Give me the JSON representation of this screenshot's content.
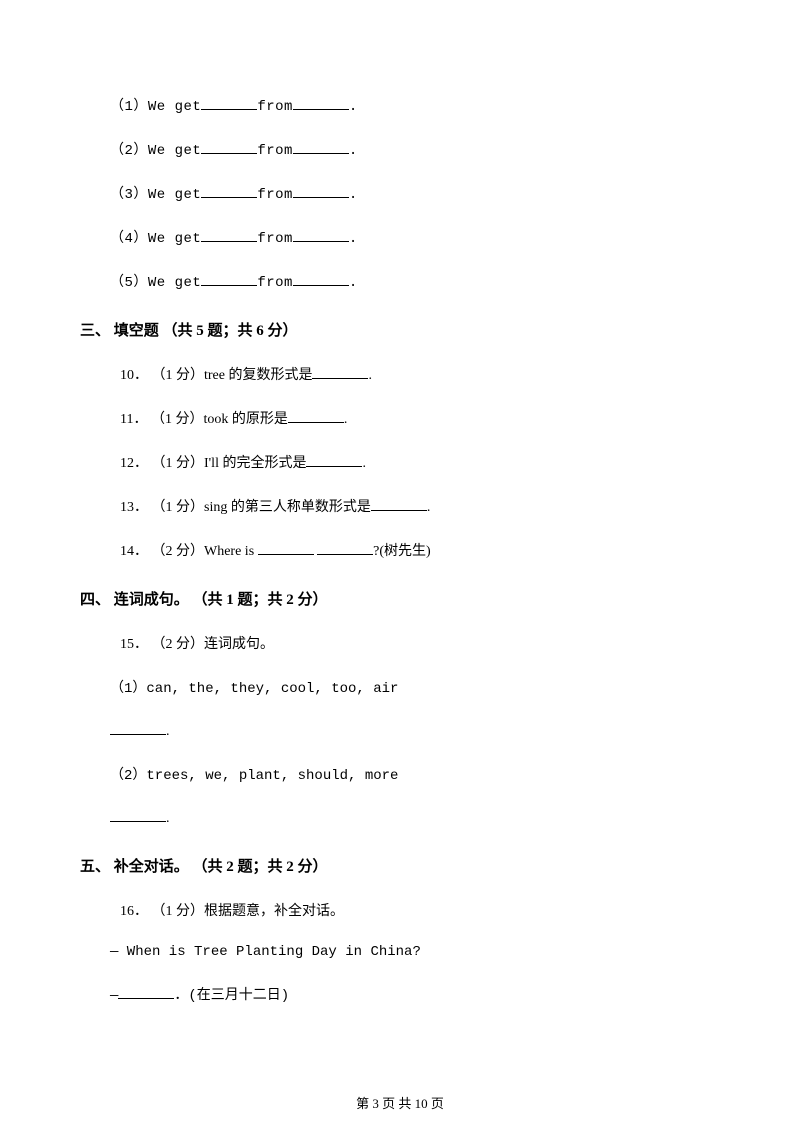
{
  "items": {
    "i1": "（1）We get",
    "i1b": "from",
    "i1c": ".",
    "i2": "（2）We get",
    "i2b": "from",
    "i2c": ".",
    "i3": "（3）We get",
    "i3b": "from",
    "i3c": ".",
    "i4": "（4）We get",
    "i4b": "from",
    "i4c": ".",
    "i5": "（5）We get",
    "i5b": "from",
    "i5c": "."
  },
  "section3": {
    "header": "三、 填空题 （共 5 题；共 6 分）",
    "q10a": "10． （1 分）tree 的复数形式是",
    "q10b": ".",
    "q11a": "11． （1 分）took 的原形是",
    "q11b": ".",
    "q12a": "12． （1 分）I'll 的完全形式是",
    "q12b": ".",
    "q13a": "13． （1 分）sing 的第三人称单数形式是",
    "q13b": ".",
    "q14a": "14． （2 分）Where is ",
    "q14b": " ",
    "q14c": "?(树先生)"
  },
  "section4": {
    "header": "四、 连词成句。 （共 1 题；共 2 分）",
    "q15": "15． （2 分）连词成句。",
    "q15_1": "（1）can, the, they, cool, too, air",
    "q15_1end": ".",
    "q15_2": "（2）trees, we, plant, should, more",
    "q15_2end": "."
  },
  "section5": {
    "header": "五、 补全对话。 （共 2 题；共 2 分）",
    "q16": "16． （1 分）根据题意，补全对话。",
    "d1": "— When is Tree Planting Day in China?",
    "d2a": "—",
    "d2b": "．(在三月十二日)"
  },
  "footer": "第 3 页 共 10 页"
}
